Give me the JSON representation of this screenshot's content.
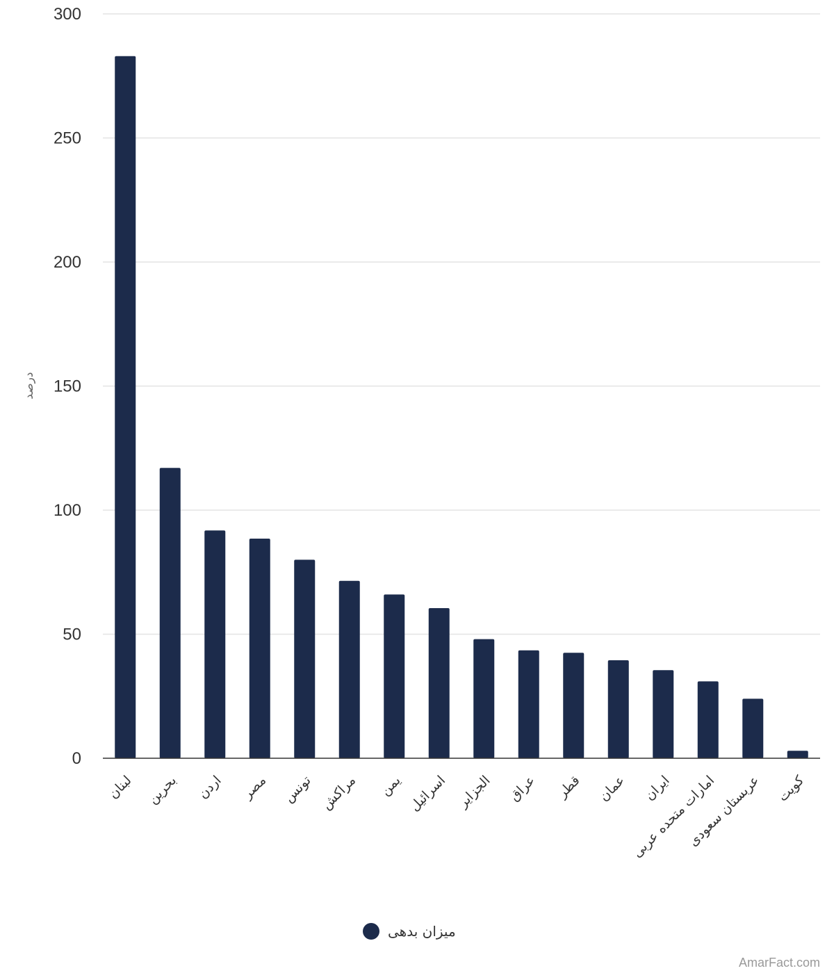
{
  "chart_data": {
    "type": "bar",
    "categories": [
      "لبنان",
      "بحرین",
      "اردن",
      "مصر",
      "تونس",
      "مراکش",
      "یمن",
      "اسرائیل",
      "الجزایر",
      "عراق",
      "قطر",
      "عمان",
      "ایران",
      "امارات متحده عربی",
      "عربستان سعودی",
      "کویت"
    ],
    "series": [
      {
        "name": "میزان بدهی",
        "values": [
          283,
          117,
          91.8,
          88.5,
          80,
          71.5,
          66,
          60.5,
          48,
          43.5,
          42.5,
          39.5,
          35.5,
          31,
          24,
          3
        ],
        "color": "#1c2b4b"
      }
    ],
    "yticks": [
      0,
      50,
      100,
      150,
      200,
      250,
      300
    ],
    "ylim": [
      0,
      300
    ],
    "ylabel": "درصد",
    "xlabel": "",
    "title": "",
    "grid": true,
    "legend_position": "bottom-center"
  },
  "watermark": "AmarFact.com"
}
